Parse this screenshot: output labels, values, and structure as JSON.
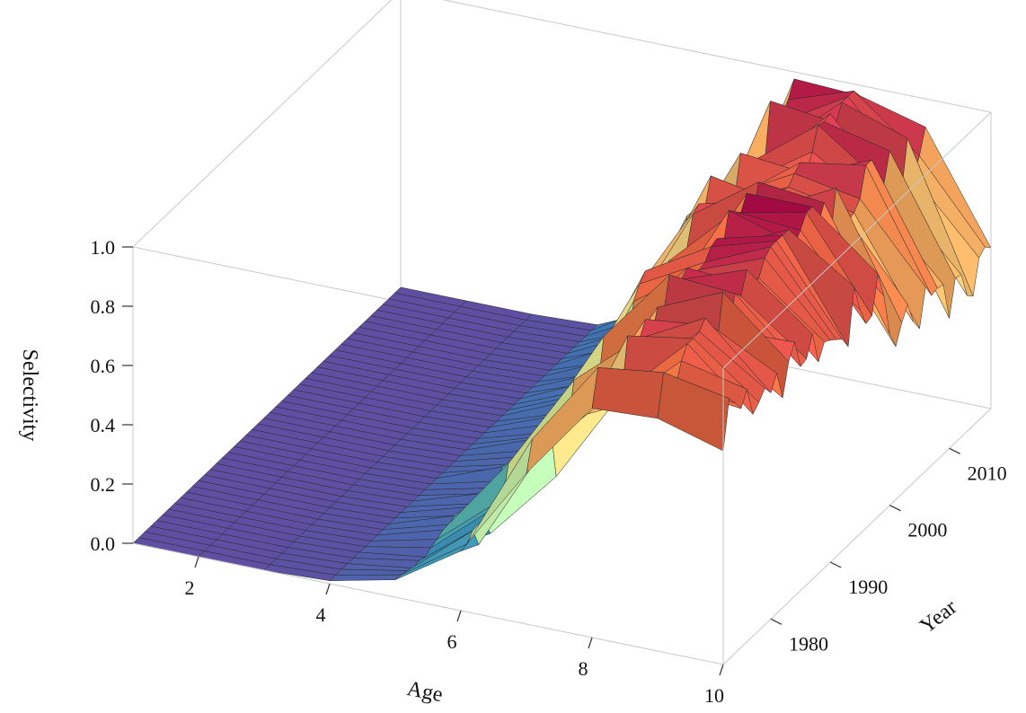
{
  "chart_data": {
    "type": "surface3d",
    "title": "",
    "xlabel": "Age",
    "ylabel": "Year",
    "zlabel": "Selectivity",
    "x_ticks": [
      2,
      4,
      6,
      8,
      10
    ],
    "y_ticks": [
      1980,
      1990,
      2000,
      2010
    ],
    "z_ticks": [
      "0.0",
      "0.2",
      "0.4",
      "0.6",
      "0.8",
      "1.0"
    ],
    "xlim": [
      1,
      10
    ],
    "ylim": [
      1972,
      2017
    ],
    "zlim": [
      0,
      1
    ],
    "grid": false,
    "colormap": "spectral",
    "ages": [
      1,
      2,
      3,
      4,
      5,
      6,
      7,
      8,
      9,
      10
    ],
    "selectivity_by_period": [
      {
        "years": [
          1972,
          1979
        ],
        "values": [
          0,
          0,
          0,
          0.01,
          0.05,
          0.2,
          0.5,
          0.8,
          0.85,
          0.78
        ]
      },
      {
        "years": [
          1980,
          1989
        ],
        "values": [
          0,
          0,
          0,
          0.01,
          0.07,
          0.3,
          0.62,
          0.9,
          0.95,
          0.8
        ]
      },
      {
        "years": [
          1990,
          1999
        ],
        "values": [
          0,
          0,
          0,
          0.01,
          0.08,
          0.35,
          0.7,
          0.95,
          0.98,
          0.75
        ]
      },
      {
        "years": [
          2000,
          2009
        ],
        "values": [
          0,
          0,
          0,
          0.01,
          0.1,
          0.45,
          0.85,
          0.97,
          0.9,
          0.6
        ]
      },
      {
        "years": [
          2010,
          2017
        ],
        "values": [
          0,
          0,
          0,
          0.01,
          0.12,
          0.5,
          0.88,
          1.0,
          0.85,
          0.5
        ]
      }
    ]
  }
}
